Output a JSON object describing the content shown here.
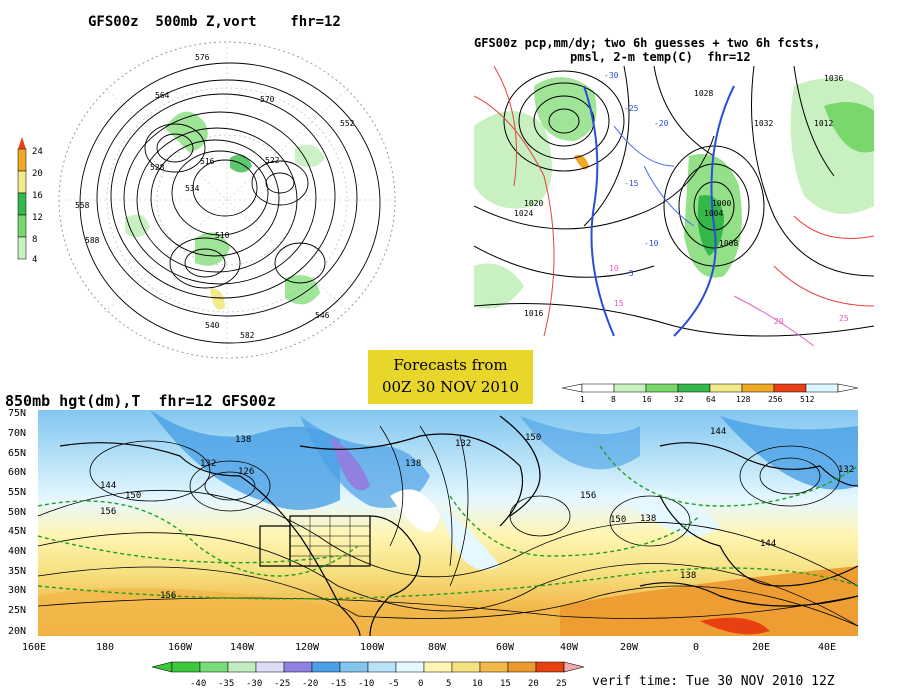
{
  "panels": {
    "top_left": {
      "title": "GFS00z  500mb Z,vort    fhr=12",
      "legend_values": [
        "24",
        "20",
        "16",
        "12",
        "8",
        "4"
      ],
      "contour_labels": [
        "576",
        "564",
        "570",
        "552",
        "528",
        "534",
        "516",
        "510",
        "540",
        "546",
        "522",
        "558",
        "582",
        "588"
      ]
    },
    "top_right": {
      "title_line1": "GFS00z pcp,mm/dy; two 6h guesses + two 6h fcsts,",
      "title_line2": "pmsl, 2-m temp(C)  fhr=12",
      "legend_values": [
        "1",
        "8",
        "16",
        "32",
        "64",
        "128",
        "256",
        "512"
      ],
      "legend_colors": [
        "#ffffff",
        "#c8f0c0",
        "#78d86c",
        "#34b84a",
        "#f2e98a",
        "#f0a828",
        "#e84018",
        "#ddf6ff"
      ],
      "pressure_labels": [
        "1028",
        "1032",
        "1024",
        "1020",
        "1016",
        "1012",
        "1008",
        "1004",
        "1000",
        "1036"
      ],
      "temp_labels": [
        "-30",
        "-25",
        "-20",
        "-15",
        "-10",
        "-5",
        "10",
        "15",
        "20",
        "25"
      ]
    },
    "bottom": {
      "title": "850mb hgt(dm),T  fhr=12 GFS00z",
      "lat_labels": [
        "75N",
        "70N",
        "65N",
        "60N",
        "55N",
        "50N",
        "45N",
        "40N",
        "35N",
        "30N",
        "25N",
        "20N"
      ],
      "lon_labels": [
        "160E",
        "180",
        "160W",
        "140W",
        "120W",
        "100W",
        "80W",
        "60W",
        "40W",
        "20W",
        "0",
        "20E",
        "40E"
      ],
      "contour_labels": [
        "138",
        "132",
        "126",
        "144",
        "150",
        "156",
        "138",
        "132",
        "150",
        "144",
        "138",
        "156",
        "150",
        "144",
        "132",
        "156",
        "138"
      ],
      "temp_legend_values": [
        "-40",
        "-35",
        "-30",
        "-25",
        "-20",
        "-15",
        "-10",
        "-5",
        "0",
        "5",
        "10",
        "15",
        "20",
        "25"
      ],
      "temp_legend_colors": [
        "#3cc83c",
        "#78dc78",
        "#c0ecc0",
        "#dcdcf8",
        "#9080e0",
        "#4aa0e6",
        "#82c6f0",
        "#b8e2f8",
        "#e6f8ff",
        "#fff6b4",
        "#f6e080",
        "#f2b84a",
        "#ec9a30",
        "#e84010"
      ]
    }
  },
  "badge": {
    "line1": "Forecasts from",
    "line2": "00Z 30 NOV 2010"
  },
  "verif_time": "verif time: Tue 30 NOV 2010 12Z"
}
